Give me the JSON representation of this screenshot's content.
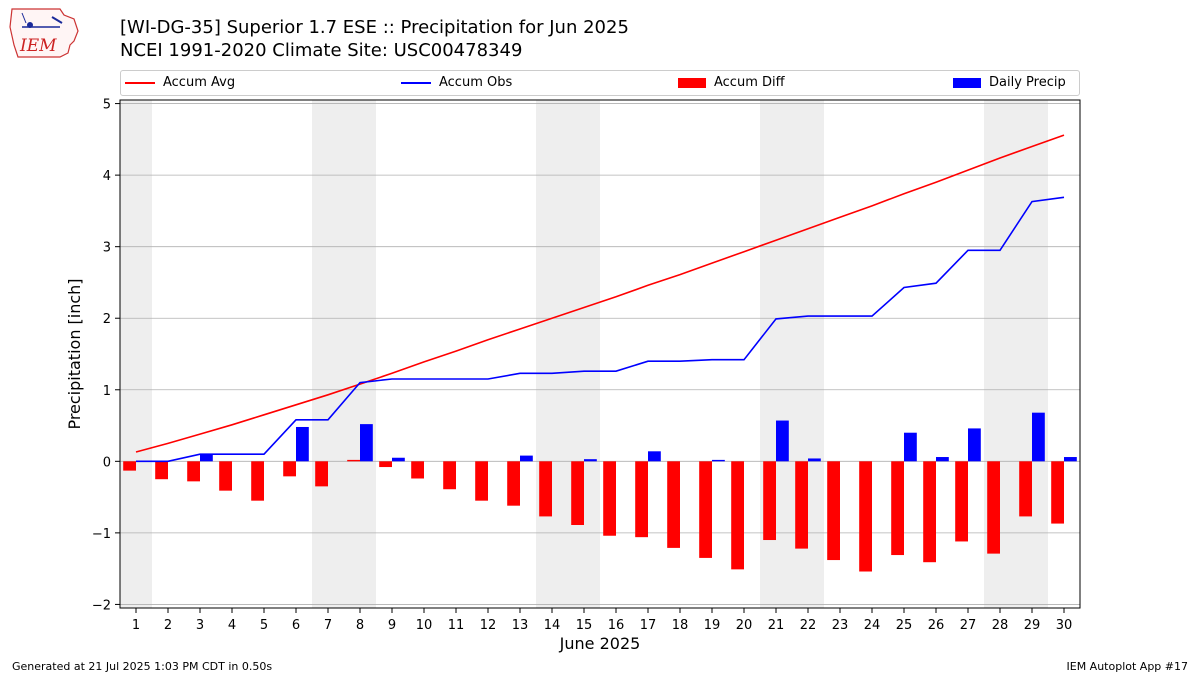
{
  "header": {
    "title_line1": "[WI-DG-35] Superior 1.7 ESE :: Precipitation for Jun 2025",
    "title_line2": "NCEI 1991-2020 Climate Site: USC00478349"
  },
  "logo": {
    "text": "IEM"
  },
  "footer": {
    "generated": "Generated at 21 Jul 2025 1:03 PM CDT in 0.50s",
    "app": "IEM Autoplot App #17"
  },
  "colors": {
    "accum_avg": "#ff0000",
    "accum_obs": "#0000ff",
    "accum_diff": "#ff0000",
    "daily_precip": "#0000ff",
    "weekend_shade": "#eeeeee",
    "grid": "#b0b0b0"
  },
  "chart_data": {
    "type": "bar",
    "xlabel": "June 2025",
    "ylabel": "Precipitation [inch]",
    "ylim": [
      -2.05,
      5.05
    ],
    "yticks": [
      -2,
      -1,
      0,
      1,
      2,
      3,
      4,
      5
    ],
    "ytick_labels": [
      "−2",
      "−1",
      "0",
      "1",
      "2",
      "3",
      "4",
      "5"
    ],
    "grid": "horizontal",
    "legend_placement": "top, above plot",
    "x": [
      1,
      2,
      3,
      4,
      5,
      6,
      7,
      8,
      9,
      10,
      11,
      12,
      13,
      14,
      15,
      16,
      17,
      18,
      19,
      20,
      21,
      22,
      23,
      24,
      25,
      26,
      27,
      28,
      29,
      30
    ],
    "weekend_days": [
      1,
      7,
      8,
      14,
      15,
      21,
      22,
      28,
      29
    ],
    "series": [
      {
        "name": "Accum Avg",
        "kind": "line",
        "values": [
          0.13,
          0.25,
          0.38,
          0.51,
          0.65,
          0.79,
          0.93,
          1.08,
          1.23,
          1.39,
          1.54,
          1.7,
          1.85,
          2.0,
          2.15,
          2.3,
          2.46,
          2.61,
          2.77,
          2.93,
          3.09,
          3.25,
          3.41,
          3.57,
          3.74,
          3.9,
          4.07,
          4.24,
          4.4,
          4.56
        ]
      },
      {
        "name": "Accum Obs",
        "kind": "line",
        "values": [
          0.0,
          0.0,
          0.1,
          0.1,
          0.1,
          0.58,
          0.58,
          1.1,
          1.15,
          1.15,
          1.15,
          1.15,
          1.23,
          1.23,
          1.26,
          1.26,
          1.4,
          1.4,
          1.42,
          1.42,
          1.99,
          2.03,
          2.03,
          2.03,
          2.43,
          2.49,
          2.95,
          2.95,
          3.63,
          3.69
        ]
      },
      {
        "name": "Accum Diff",
        "kind": "bar",
        "values": [
          -0.13,
          -0.25,
          -0.28,
          -0.41,
          -0.55,
          -0.21,
          -0.35,
          0.02,
          -0.08,
          -0.24,
          -0.39,
          -0.55,
          -0.62,
          -0.77,
          -0.89,
          -1.04,
          -1.06,
          -1.21,
          -1.35,
          -1.51,
          -1.1,
          -1.22,
          -1.38,
          -1.54,
          -1.31,
          -1.41,
          -1.12,
          -1.29,
          -0.77,
          -0.87
        ]
      },
      {
        "name": "Daily Precip",
        "kind": "bar",
        "values": [
          0.0,
          0.0,
          0.1,
          0.0,
          0.0,
          0.48,
          0.0,
          0.52,
          0.05,
          0.0,
          0.0,
          0.0,
          0.08,
          0.0,
          0.03,
          0.0,
          0.14,
          0.0,
          0.02,
          0.0,
          0.57,
          0.04,
          0.0,
          0.0,
          0.4,
          0.06,
          0.46,
          0.0,
          0.68,
          0.06
        ]
      }
    ]
  }
}
